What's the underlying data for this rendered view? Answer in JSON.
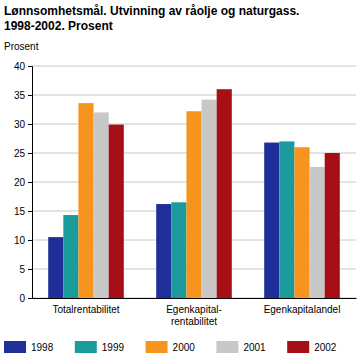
{
  "chart_data": {
    "type": "bar",
    "title": "Lønnsomhetsmål. Utvinning av råolje og naturgass. 1998-2002. Prosent",
    "ylabel": "Prosent",
    "categories": [
      "Totalrentabilitet",
      "Egenkapital-rentabilitet",
      "Egenkapitalandel"
    ],
    "series": [
      {
        "name": "1998",
        "color": "#1f2f9a",
        "values": [
          10.5,
          16.2,
          26.8
        ]
      },
      {
        "name": "1999",
        "color": "#1a9a9a",
        "values": [
          14.3,
          16.5,
          27.0
        ]
      },
      {
        "name": "2000",
        "color": "#f7941d",
        "values": [
          33.6,
          32.2,
          26.0
        ]
      },
      {
        "name": "2001",
        "color": "#c8c8c8",
        "values": [
          32.0,
          34.2,
          22.6
        ]
      },
      {
        "name": "2002",
        "color": "#a50f15",
        "values": [
          29.9,
          36.0,
          25.0
        ]
      }
    ],
    "ylim": [
      0,
      40
    ],
    "yticks": [
      0,
      5,
      10,
      15,
      20,
      25,
      30,
      35,
      40
    ],
    "grid": true,
    "legend": "bottom"
  }
}
